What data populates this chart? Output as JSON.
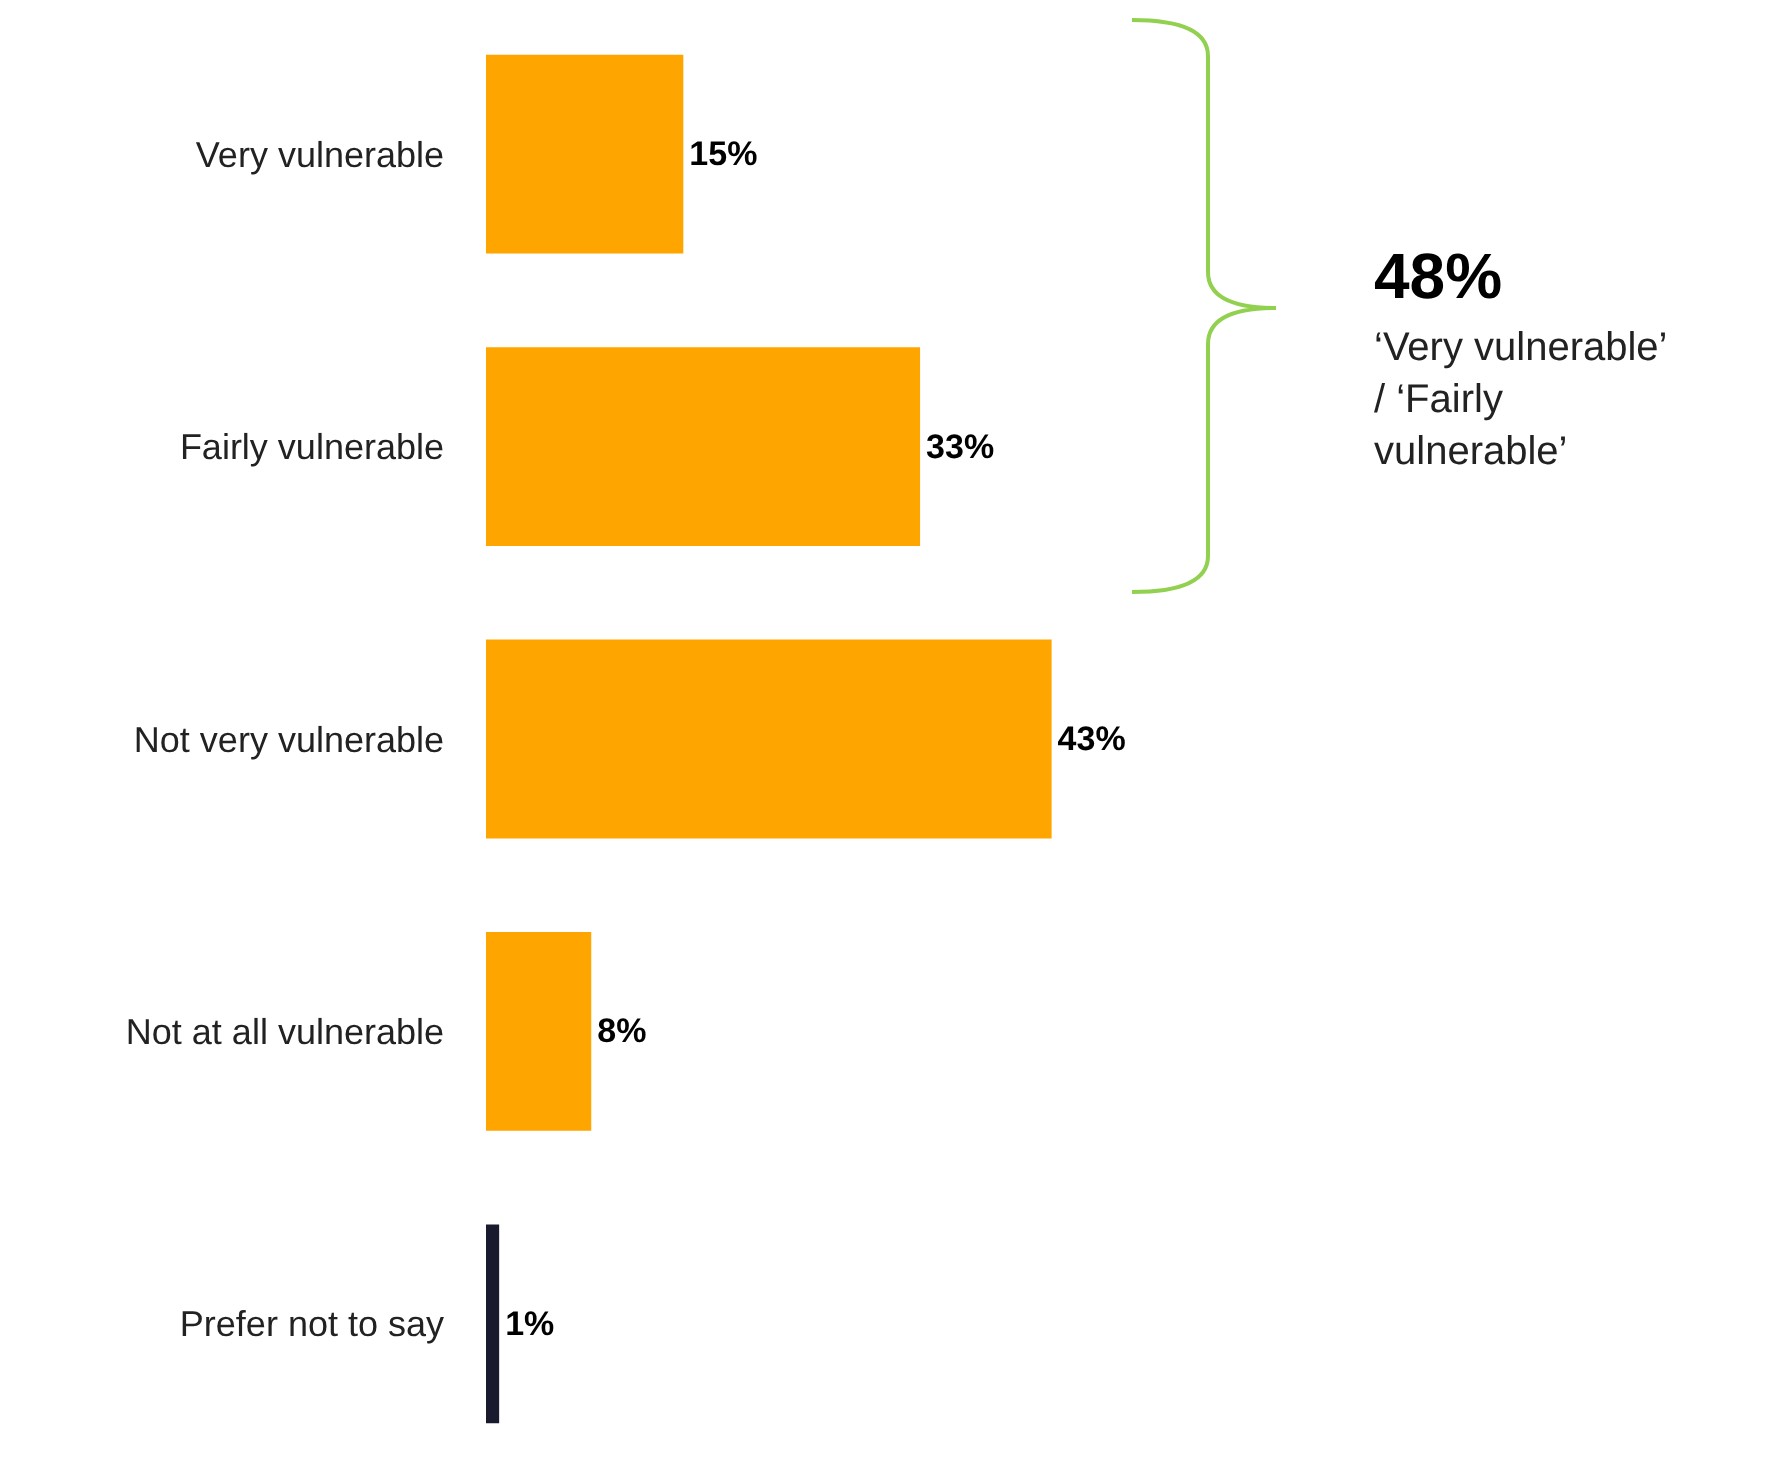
{
  "chart_data": {
    "type": "bar",
    "orientation": "horizontal",
    "categories": [
      "Very vulnerable",
      "Fairly vulnerable",
      "Not very vulnerable",
      "Not at all vulnerable",
      "Prefer not to say"
    ],
    "values": [
      15,
      33,
      43,
      8,
      1
    ],
    "colors": [
      "#ffa500",
      "#ffa500",
      "#ffa500",
      "#ffa500",
      "#1a1a2e"
    ],
    "value_labels": [
      "15%",
      "33%",
      "43%",
      "8%",
      "1%"
    ],
    "annotations": [
      "48%",
      "‘Very vulnerable’ / ‘Fairly vulnerable’"
    ],
    "grid": false,
    "legend": false,
    "tick_labels": "y"
  }
}
